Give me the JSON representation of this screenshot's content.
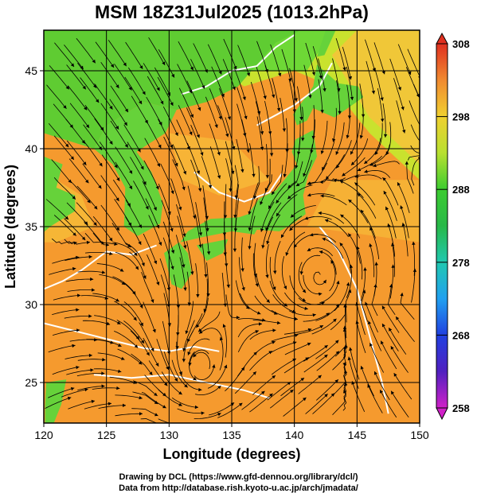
{
  "chart_data": {
    "type": "heatmap",
    "title": "MSM 18Z31Jul2025 (1013.2hPa)",
    "xlabel": "Longitude (degrees)",
    "ylabel": "Latitude  (degrees)",
    "xlim": [
      120,
      150
    ],
    "ylim": [
      22.4,
      47.6
    ],
    "x_ticks": [
      120,
      125,
      130,
      135,
      140,
      145,
      150
    ],
    "y_ticks": [
      25,
      30,
      35,
      40,
      45
    ],
    "gridlines": true,
    "overlay": "streamlines",
    "colorbar": {
      "min": 258,
      "max": 308,
      "ticks": [
        258,
        268,
        278,
        288,
        298,
        308
      ],
      "placement": "right"
    },
    "colors": {
      "hot": "#f59a2e",
      "warm": "#f7c23a",
      "mild": "#c9e22e",
      "cool": "#4fd43a",
      "contour": "#ffffff"
    }
  },
  "credits": {
    "line1": "Drawing by DCL (https://www.gfd-dennou.org/library/dcl/)",
    "line2": "Data from http://database.rish.kyoto-u.ac.jp/arch/jmadata/"
  }
}
